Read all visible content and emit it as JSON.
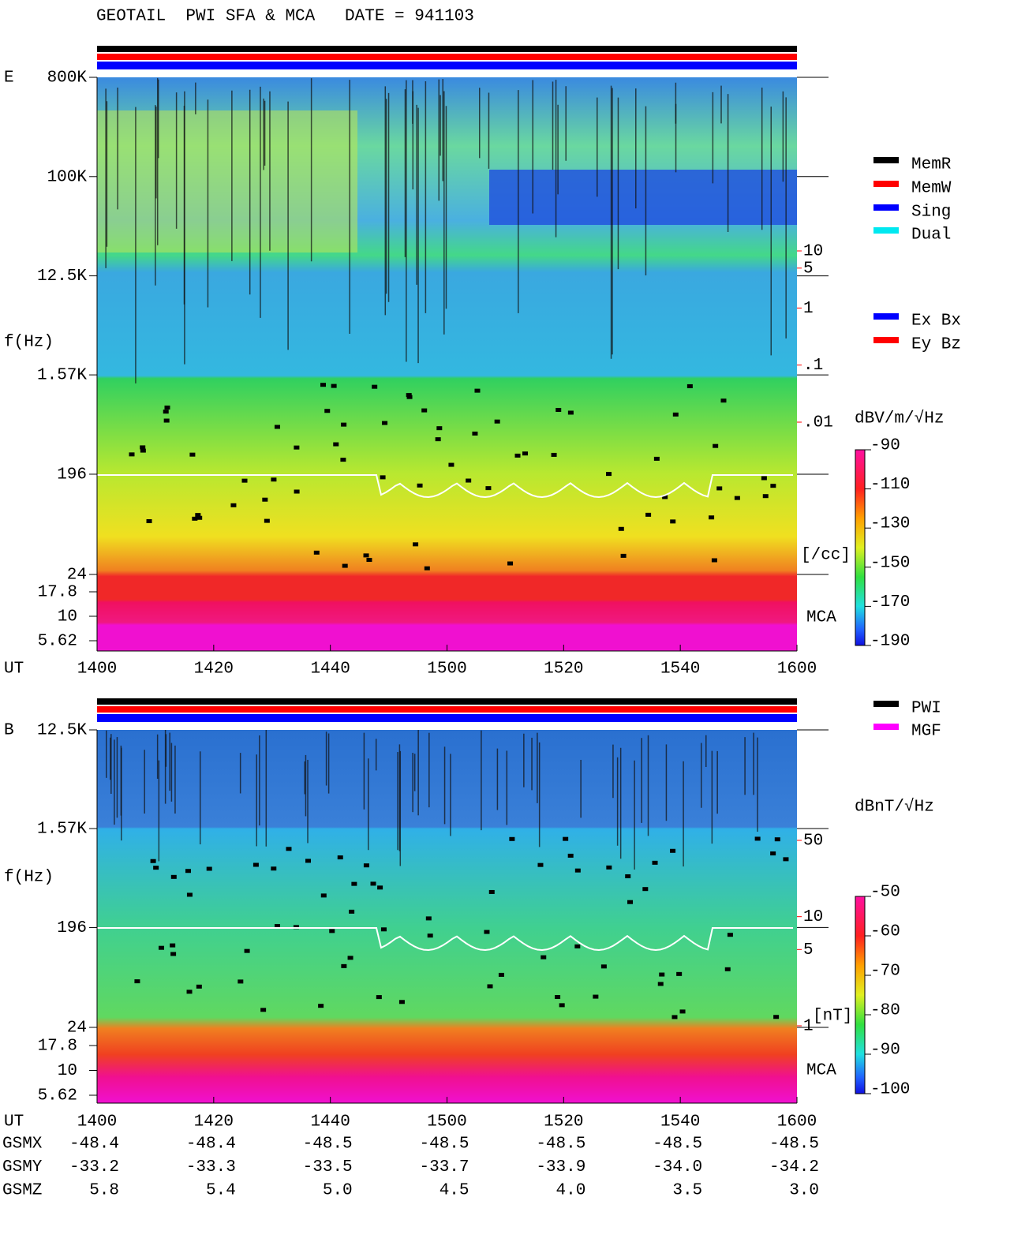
{
  "title": "GEOTAIL  PWI SFA & MCA   DATE = 941103",
  "chart_data": [
    {
      "type": "spectrogram",
      "panel_label": "E",
      "ylabel": "f(Hz)",
      "xlabel": "UT",
      "yscale": "log",
      "ylim": [
        24,
        800000
      ],
      "yticks": [
        {
          "value": 800000,
          "label": "800K"
        },
        {
          "value": 100000,
          "label": "100K"
        },
        {
          "value": 12500,
          "label": "12.5K"
        },
        {
          "value": 1570,
          "label": "1.57K"
        },
        196,
        24
      ],
      "mca_label": "MCA",
      "mca_yticks": [
        17.8,
        10,
        5.62
      ],
      "xticks": [
        "1400",
        "1420",
        "1440",
        "1500",
        "1520",
        "1540",
        "1600"
      ],
      "density_label": "[/cc]",
      "density_ticks": [
        10,
        5,
        1,
        {
          "value": 0.1,
          "label": ".1"
        },
        {
          "value": 0.01,
          "label": ".01"
        }
      ],
      "status_colors": [
        "#000000",
        "#ff0000",
        "#0000ff"
      ],
      "legend": [
        {
          "name": "MemR",
          "color": "#000000"
        },
        {
          "name": "MemW",
          "color": "#ff0000"
        },
        {
          "name": "Sing",
          "color": "#0000ff"
        },
        {
          "name": "Dual",
          "color": "#00e8f0"
        }
      ],
      "legend2": [
        {
          "name": "Ex Bx",
          "color": "#0000ff"
        },
        {
          "name": "Ey Bz",
          "color": "#ff0000"
        }
      ],
      "colorbar": {
        "label": "dBV/m/√Hz",
        "clim": [
          -190,
          -90
        ],
        "ticks": [
          -90,
          -110,
          -130,
          -150,
          -170,
          -190
        ]
      }
    },
    {
      "type": "spectrogram",
      "panel_label": "B",
      "ylabel": "f(Hz)",
      "xlabel": "UT",
      "yscale": "log",
      "ylim": [
        24,
        12500
      ],
      "yticks": [
        {
          "value": 12500,
          "label": "12.5K"
        },
        {
          "value": 1570,
          "label": "1.57K"
        },
        196,
        24
      ],
      "mca_label": "MCA",
      "mca_yticks": [
        17.8,
        10,
        5.62
      ],
      "xticks": [
        "1400",
        "1420",
        "1440",
        "1500",
        "1520",
        "1540",
        "1600"
      ],
      "density_label": "[nT]",
      "density_ticks": [
        50,
        10,
        5,
        1
      ],
      "status_colors": [
        "#000000",
        "#ff0000",
        "#0000ff"
      ],
      "legend": [
        {
          "name": "PWI",
          "color": "#000000"
        },
        {
          "name": "MGF",
          "color": "#ff00ff"
        }
      ],
      "colorbar": {
        "label": "dBnT/√Hz",
        "clim": [
          -100,
          -50
        ],
        "ticks": [
          -50,
          -60,
          -70,
          -80,
          -90,
          -100
        ]
      }
    }
  ],
  "ephemeris": {
    "rows": [
      {
        "label": "GSMX",
        "values": [
          "-48.4",
          "-48.4",
          "-48.5",
          "-48.5",
          "-48.5",
          "-48.5",
          "-48.5"
        ]
      },
      {
        "label": "GSMY",
        "values": [
          "-33.2",
          "-33.3",
          "-33.5",
          "-33.7",
          "-33.9",
          "-34.0",
          "-34.2"
        ]
      },
      {
        "label": "GSMZ",
        "values": [
          "5.8",
          "5.4",
          "5.0",
          "4.5",
          "4.0",
          "3.5",
          "3.0"
        ]
      }
    ]
  }
}
